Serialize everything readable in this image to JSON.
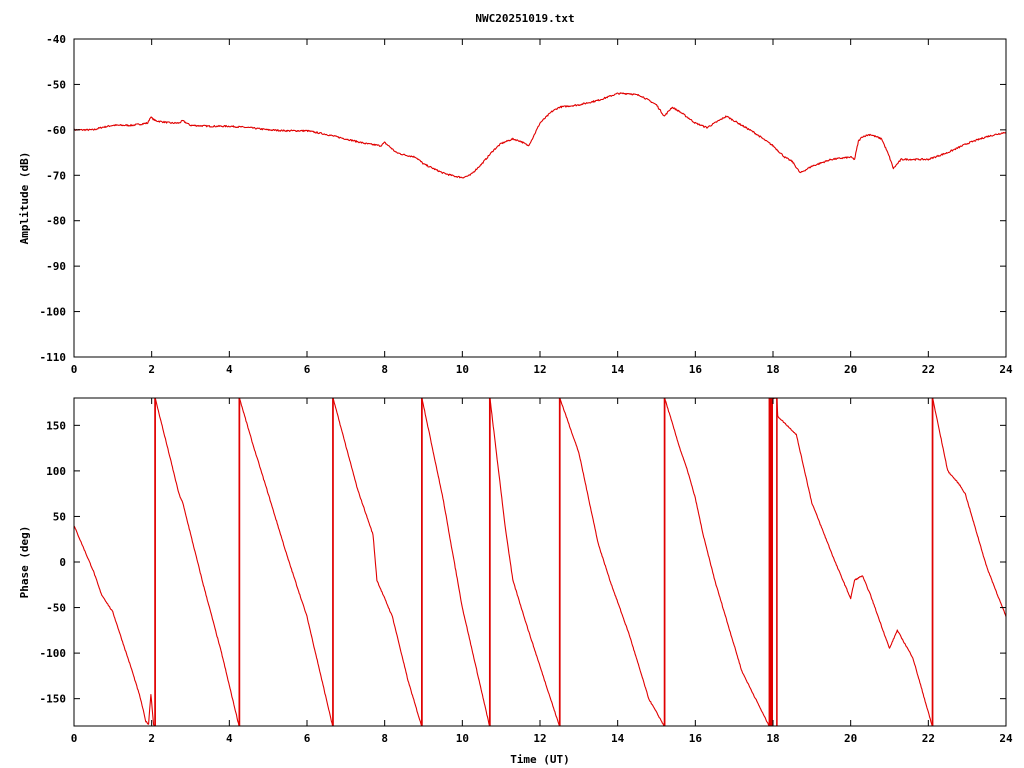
{
  "colors": {
    "series": "#e00000",
    "axis": "#000000",
    "background": "#ffffff"
  },
  "chart_data": [
    {
      "type": "line",
      "title": "NWC20251019.txt",
      "xlabel": "",
      "ylabel": "Amplitude (dB)",
      "xlim": [
        0,
        24
      ],
      "ylim": [
        -110,
        -40
      ],
      "xticks": [
        "0",
        "2",
        "4",
        "6",
        "8",
        "10",
        "12",
        "14",
        "16",
        "18",
        "20",
        "22",
        "24"
      ],
      "yticks": [
        "-40",
        "-50",
        "-60",
        "-70",
        "-80",
        "-90",
        "-100",
        "-110"
      ],
      "grid": false,
      "legend": "none",
      "series": [
        {
          "x": [
            0,
            0.5,
            0.7,
            1.0,
            1.5,
            1.9,
            1.97,
            2.1,
            2.5,
            2.7,
            2.8,
            3.0,
            3.5,
            4.0,
            4.5,
            5.0,
            5.5,
            6.0,
            6.5,
            7.0,
            7.5,
            7.9,
            8.0,
            8.1,
            8.3,
            8.5,
            8.8,
            9.0,
            9.5,
            9.8,
            10.0,
            10.2,
            10.5,
            10.8,
            11.0,
            11.3,
            11.5,
            11.7,
            11.8,
            12.0,
            12.3,
            12.5,
            13.0,
            13.5,
            14.0,
            14.3,
            14.6,
            15.0,
            15.2,
            15.4,
            15.6,
            16.0,
            16.3,
            16.8,
            17.0,
            17.5,
            18.0,
            18.3,
            18.5,
            18.7,
            19.0,
            19.5,
            20.0,
            20.1,
            20.2,
            20.3,
            20.5,
            20.8,
            21.0,
            21.1,
            21.3,
            21.7,
            22.0,
            22.5,
            23.0,
            23.5,
            24.0
          ],
          "y": [
            -60,
            -60,
            -59.5,
            -59,
            -59,
            -58.5,
            -57.2,
            -58,
            -58.5,
            -58.5,
            -58,
            -59,
            -59.2,
            -59.2,
            -59.5,
            -60,
            -60.2,
            -60.2,
            -61,
            -62,
            -63,
            -63.5,
            -62.8,
            -63.5,
            -65,
            -65.5,
            -66,
            -67.5,
            -69.5,
            -70.2,
            -70.5,
            -70,
            -67.5,
            -64.5,
            -63,
            -62,
            -62.5,
            -63.5,
            -62,
            -58.5,
            -56,
            -55,
            -54.5,
            -53.5,
            -52,
            -52,
            -52.5,
            -54.5,
            -57,
            -55,
            -56,
            -58.5,
            -59.5,
            -57,
            -58,
            -60.5,
            -63.5,
            -66,
            -67,
            -69.5,
            -68,
            -66.5,
            -66,
            -66.5,
            -62.5,
            -61.5,
            -61,
            -62,
            -66,
            -68.5,
            -66.5,
            -66.5,
            -66.5,
            -65,
            -63,
            -61.5,
            -60.5
          ]
        }
      ]
    },
    {
      "type": "line",
      "title": "",
      "xlabel": "Time (UT)",
      "ylabel": "Phase (deg)",
      "xlim": [
        0,
        24
      ],
      "ylim": [
        -180,
        180
      ],
      "xticks": [
        "0",
        "2",
        "4",
        "6",
        "8",
        "10",
        "12",
        "14",
        "16",
        "18",
        "20",
        "22",
        "24"
      ],
      "yticks": [
        "150",
        "100",
        "50",
        "0",
        "-50",
        "-100",
        "-150"
      ],
      "grid": false,
      "legend": "none",
      "series": [
        {
          "x": [
            0,
            0.5,
            0.7,
            1.0,
            1.5,
            1.7,
            1.85,
            1.92,
            1.98,
            2.05,
            2.08,
            2.09,
            2.5,
            2.7,
            2.8,
            3.3,
            3.8,
            4.25,
            4.26,
            4.6,
            5.0,
            5.5,
            6.0,
            6.66,
            6.67,
            7.3,
            7.7,
            7.8,
            8.2,
            8.6,
            8.95,
            8.96,
            9.5,
            10.0,
            10.7,
            10.71,
            11.1,
            11.3,
            11.7,
            12.5,
            12.51,
            13.0,
            13.5,
            13.8,
            14.3,
            14.8,
            15.2,
            15.21,
            15.6,
            15.8,
            16.0,
            16.2,
            16.5,
            17.2,
            17.9,
            18.0,
            18.1,
            18.12,
            18.6,
            19.0,
            19.6,
            20.0,
            20.1,
            20.3,
            20.5,
            21.0,
            21.2,
            21.6,
            22.1,
            22.11,
            22.5,
            22.8,
            22.95,
            23.5,
            24.0
          ],
          "y": [
            40,
            -10,
            -35,
            -55,
            -120,
            -148,
            -175,
            -178,
            -145,
            -178,
            -180,
            180,
            110,
            75,
            65,
            -20,
            -100,
            -180,
            180,
            130,
            75,
            5,
            -60,
            -180,
            180,
            80,
            30,
            -20,
            -60,
            -130,
            -180,
            180,
            70,
            -50,
            -180,
            180,
            40,
            -20,
            -75,
            -180,
            180,
            120,
            20,
            -20,
            -80,
            -150,
            -180,
            180,
            125,
            100,
            70,
            30,
            -20,
            -120,
            -180,
            180,
            180,
            160,
            140,
            65,
            0,
            -40,
            -20,
            -15,
            -35,
            -95,
            -75,
            -105,
            -180,
            180,
            100,
            85,
            75,
            -5,
            -60
          ],
          "wraps": [
            [
              2.085,
              2.095
            ],
            [
              4.255,
              4.265
            ],
            [
              6.665,
              6.675
            ],
            [
              8.955,
              8.965
            ],
            [
              10.705,
              10.715
            ],
            [
              12.505,
              12.515
            ],
            [
              15.205,
              15.215
            ],
            [
              17.9,
              18.0
            ],
            [
              18.08,
              18.12
            ],
            [
              22.105,
              22.115
            ]
          ]
        }
      ]
    }
  ]
}
